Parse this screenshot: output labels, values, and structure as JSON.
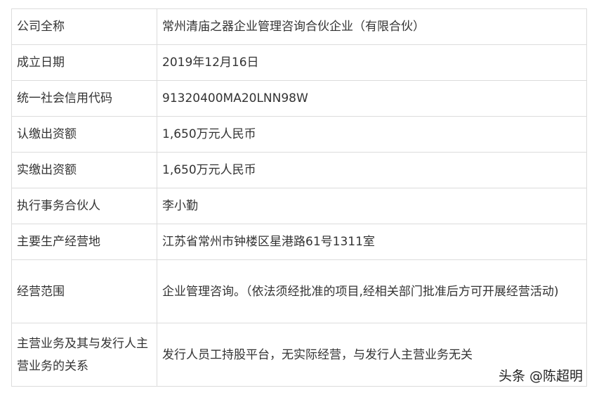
{
  "rows": [
    {
      "label": "公司全称",
      "value": "常州清庙之器企业管理咨询合伙企业（有限合伙）"
    },
    {
      "label": "成立日期",
      "value": "2019年12月16日"
    },
    {
      "label": "统一社会信用代码",
      "value": "91320400MA20LNN98W"
    },
    {
      "label": "认缴出资额",
      "value": "1,650万元人民币"
    },
    {
      "label": "实缴出资额",
      "value": "1,650万元人民币"
    },
    {
      "label": "执行事务合伙人",
      "value": "李小勤"
    },
    {
      "label": "主要生产经营地",
      "value": "江苏省常州市钟楼区星港路61号1311室"
    },
    {
      "label": "经营范围",
      "value": "企业管理咨询。（依法须经批准的项目,经相关部门批准后方可开展经营活动)"
    },
    {
      "label": "主营业务及其与发行人主营业务的关系",
      "value": "发行人员工持股平台，无实际经营，与发行人主营业务无关"
    }
  ],
  "watermark": "头条 @陈超明"
}
